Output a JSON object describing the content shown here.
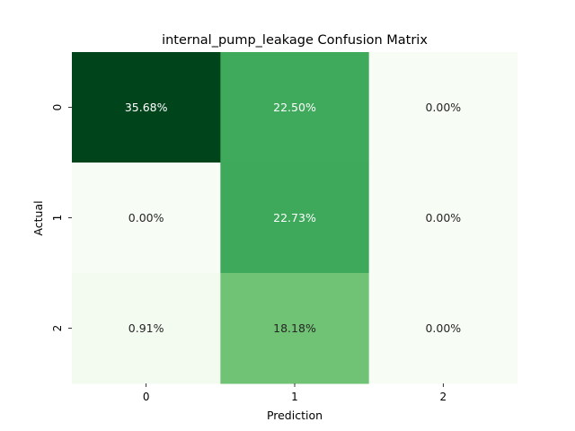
{
  "chart_data": {
    "type": "heatmap",
    "title": "internal_pump_leakage Confusion Matrix",
    "xlabel": "Prediction",
    "ylabel": "Actual",
    "x_categories": [
      "0",
      "1",
      "2"
    ],
    "y_categories": [
      "0",
      "1",
      "2"
    ],
    "values": [
      [
        35.68,
        22.5,
        0.0
      ],
      [
        0.0,
        22.73,
        0.0
      ],
      [
        0.91,
        18.18,
        0.0
      ]
    ],
    "cell_labels": [
      [
        "35.68%",
        "22.50%",
        "0.00%"
      ],
      [
        "0.00%",
        "22.73%",
        "0.00%"
      ],
      [
        "0.91%",
        "18.18%",
        "0.00%"
      ]
    ],
    "colormap": "Greens",
    "colorbar": false
  }
}
